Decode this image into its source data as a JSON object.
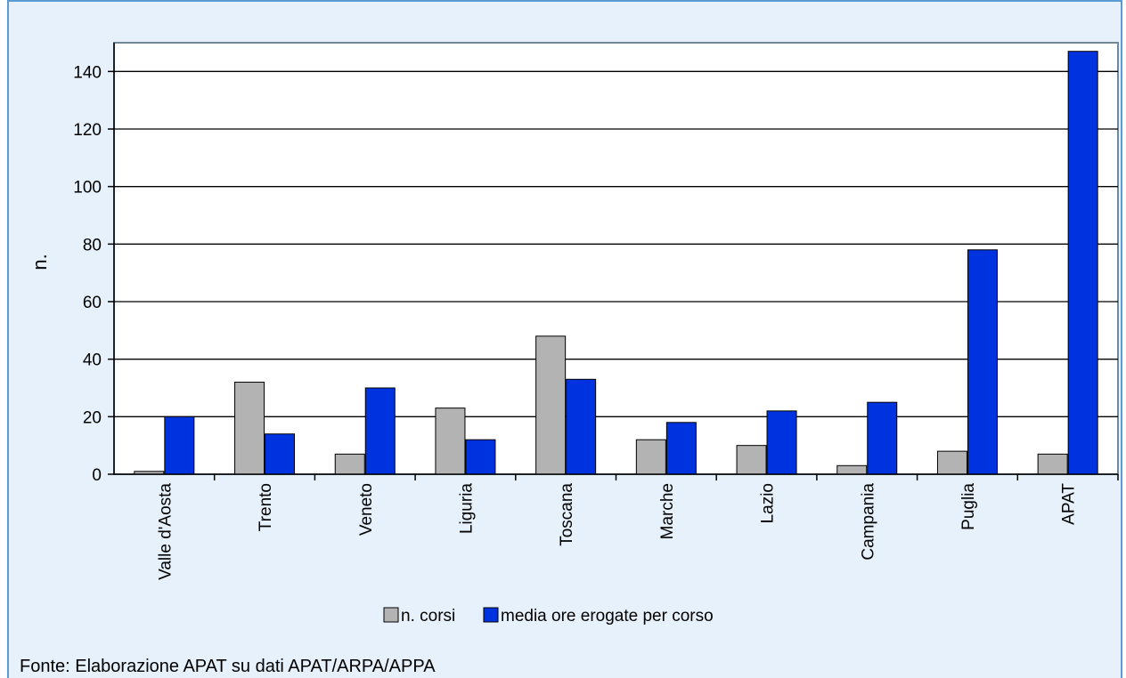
{
  "source_note": "Fonte: Elaborazione APAT su dati APAT/ARPA/APPA",
  "colors": {
    "background": "#e6f1fb",
    "frame": "#5b9bd5",
    "n_corsi": "#b3b3b3",
    "media_ore": "#0033e0"
  },
  "chart_data": {
    "type": "bar",
    "ylabel": "n.",
    "xlabel": "",
    "ylim": [
      0,
      150
    ],
    "yticks": [
      0,
      20,
      40,
      60,
      80,
      100,
      120,
      140
    ],
    "grid": "horizontal",
    "legend_placement": "bottom-center",
    "categories": [
      "Valle d'Aosta",
      "Trento",
      "Veneto",
      "Liguria",
      "Toscana",
      "Marche",
      "Lazio",
      "Campania",
      "Puglia",
      "APAT"
    ],
    "series": [
      {
        "name": "n. corsi",
        "values": [
          1,
          32,
          7,
          23,
          48,
          12,
          10,
          3,
          8,
          7
        ]
      },
      {
        "name": "media ore erogate per corso",
        "values": [
          20,
          14,
          30,
          12,
          33,
          18,
          22,
          25,
          78,
          147
        ]
      }
    ]
  }
}
